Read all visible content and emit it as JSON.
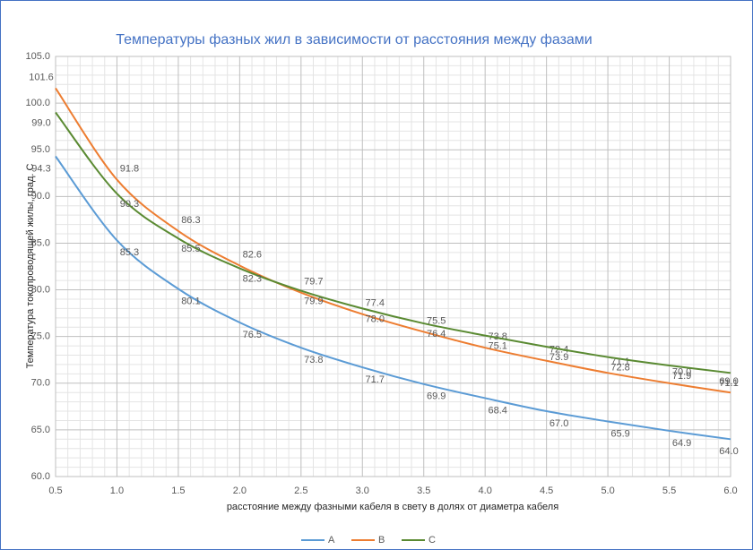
{
  "chart_data": {
    "type": "line",
    "title": "Температуры фазных жил в зависимости от расстояния между фазами",
    "x_label": "расстояние между фазными кабеля в свету в долях от диаметра кабеля",
    "y_label": "Температура токопроводящей жилы, град. С",
    "x": [
      0.5,
      1.0,
      1.5,
      2.0,
      2.5,
      3.0,
      3.5,
      4.0,
      4.5,
      5.0,
      5.5,
      6.0
    ],
    "series": [
      {
        "name": "A",
        "color": "#5b9bd5",
        "values": [
          94.3,
          85.3,
          80.1,
          76.5,
          73.8,
          71.7,
          69.9,
          68.4,
          67.0,
          65.9,
          64.9,
          64.0
        ],
        "value_labels": [
          "94.3",
          "85.3",
          "80.1",
          "76.5",
          "73.8",
          "71.7",
          "69.9",
          "68.4",
          "67.0",
          "65.9",
          "64.9",
          "64.0"
        ]
      },
      {
        "name": "B",
        "color": "#ed7d31",
        "values": [
          101.6,
          91.8,
          86.3,
          82.6,
          79.7,
          77.4,
          75.5,
          73.8,
          72.4,
          71.1,
          70.0,
          69.0
        ],
        "value_labels": [
          "101.6",
          "91.8",
          "86.3",
          "82.6",
          "79.7",
          "77.4",
          "75.5",
          "73.8",
          "72.4",
          "71.1",
          "70.0",
          "69.0"
        ]
      },
      {
        "name": "C",
        "color": "#5a8a32",
        "values": [
          99.0,
          90.3,
          85.5,
          82.3,
          79.9,
          78.0,
          76.4,
          75.1,
          73.9,
          72.8,
          71.9,
          71.1
        ],
        "value_labels": [
          "99.0",
          "90.3",
          "85.5",
          "82.3",
          "79.9",
          "78.0",
          "76.4",
          "75.1",
          "73.9",
          "72.8",
          "71.9",
          "71.1"
        ]
      }
    ],
    "xlim": [
      0.5,
      6.0
    ],
    "xticks": [
      {
        "value": 0.5,
        "label": "0.5"
      },
      {
        "value": 1.0,
        "label": "1.0"
      },
      {
        "value": 1.5,
        "label": "1.5"
      },
      {
        "value": 2.0,
        "label": "2.0"
      },
      {
        "value": 2.5,
        "label": "2.5"
      },
      {
        "value": 3.0,
        "label": "3.0"
      },
      {
        "value": 3.5,
        "label": "3.5"
      },
      {
        "value": 4.0,
        "label": "4.0"
      },
      {
        "value": 4.5,
        "label": "4.5"
      },
      {
        "value": 5.0,
        "label": "5.0"
      },
      {
        "value": 5.5,
        "label": "5.5"
      },
      {
        "value": 6.0,
        "label": "6.0"
      }
    ],
    "ylim": [
      60,
      105
    ],
    "yticks": [
      {
        "value": 60,
        "label": "60.0"
      },
      {
        "value": 65,
        "label": "65.0"
      },
      {
        "value": 70,
        "label": "70.0"
      },
      {
        "value": 75,
        "label": "75.0"
      },
      {
        "value": 80,
        "label": "80.0"
      },
      {
        "value": 85,
        "label": "85.0"
      },
      {
        "value": 90,
        "label": "90.0"
      },
      {
        "value": 95,
        "label": "95.0"
      },
      {
        "value": 100,
        "label": "100.0"
      },
      {
        "value": 105,
        "label": "105.0"
      }
    ],
    "grid": true,
    "legend": "bottom"
  }
}
